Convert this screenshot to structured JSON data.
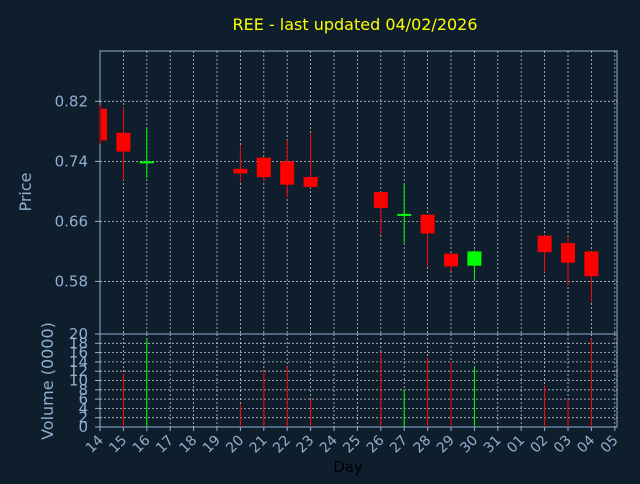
{
  "chart_data": {
    "type": "candlestick",
    "title": "REE - last updated 04/02/2026",
    "xlabel": "Day",
    "ylabel_price": "Price",
    "ylabel_volume": "Volume (0000)",
    "x_tick_labels": [
      "14",
      "15",
      "16",
      "17",
      "18",
      "19",
      "20",
      "21",
      "22",
      "23",
      "24",
      "25",
      "26",
      "27",
      "28",
      "29",
      "30",
      "31",
      "01",
      "02",
      "03",
      "04",
      "05"
    ],
    "price_ylim": [
      0.51,
      0.887
    ],
    "price_ticks": [
      "0.58",
      "0.66",
      "0.74",
      "0.82"
    ],
    "volume_ylim": [
      0,
      20
    ],
    "volume_ticks": [
      "0",
      "2",
      "4",
      "6",
      "8",
      "10",
      "12",
      "14",
      "16",
      "18",
      "20"
    ],
    "grid": true,
    "colors": {
      "background": "#0f1e2d",
      "up": "#00ff00",
      "down": "#ff0000",
      "title": "#ffff00",
      "axis": "#8fb0d0",
      "grid": "#ffffff"
    },
    "candles": [
      {
        "day": 0,
        "open": 0.81,
        "high": 0.815,
        "low": 0.763,
        "close": 0.768,
        "volume": 0
      },
      {
        "day": 1,
        "open": 0.778,
        "high": 0.812,
        "low": 0.715,
        "close": 0.753,
        "volume": 11.5
      },
      {
        "day": 2,
        "open": 0.74,
        "high": 0.785,
        "low": 0.718,
        "close": 0.74,
        "volume": 19
      },
      {
        "day": 6,
        "open": 0.73,
        "high": 0.762,
        "low": 0.712,
        "close": 0.724,
        "volume": 5
      },
      {
        "day": 7,
        "open": 0.745,
        "high": 0.745,
        "low": 0.713,
        "close": 0.719,
        "volume": 12
      },
      {
        "day": 8,
        "open": 0.74,
        "high": 0.768,
        "low": 0.692,
        "close": 0.709,
        "volume": 13
      },
      {
        "day": 9,
        "open": 0.719,
        "high": 0.778,
        "low": 0.705,
        "close": 0.706,
        "volume": 6
      },
      {
        "day": 12,
        "open": 0.699,
        "high": 0.699,
        "low": 0.642,
        "close": 0.678,
        "volume": 16
      },
      {
        "day": 13,
        "open": 0.67,
        "high": 0.71,
        "low": 0.632,
        "close": 0.67,
        "volume": 8
      },
      {
        "day": 14,
        "open": 0.669,
        "high": 0.669,
        "low": 0.6,
        "close": 0.644,
        "volume": 15
      },
      {
        "day": 15,
        "open": 0.617,
        "high": 0.617,
        "low": 0.594,
        "close": 0.6,
        "volume": 14
      },
      {
        "day": 16,
        "open": 0.601,
        "high": 0.621,
        "low": 0.583,
        "close": 0.62,
        "volume": 13
      },
      {
        "day": 19,
        "open": 0.641,
        "high": 0.641,
        "low": 0.592,
        "close": 0.619,
        "volume": 9
      },
      {
        "day": 20,
        "open": 0.631,
        "high": 0.64,
        "low": 0.576,
        "close": 0.605,
        "volume": 6
      },
      {
        "day": 21,
        "open": 0.62,
        "high": 0.62,
        "low": 0.552,
        "close": 0.587,
        "volume": 19
      }
    ]
  }
}
